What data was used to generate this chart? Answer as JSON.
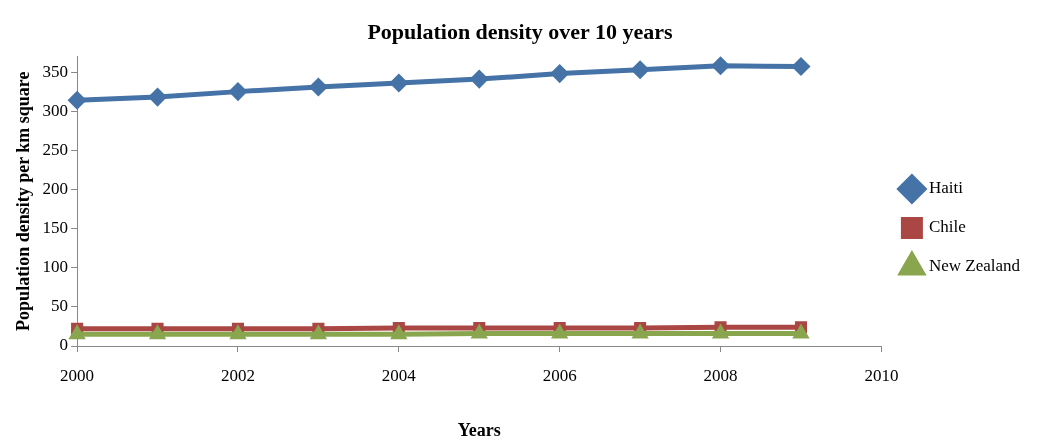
{
  "chart_data": {
    "type": "line",
    "title": "Population density over 10 years",
    "xlabel": "Years",
    "ylabel": "Population density per km square",
    "x": [
      2000,
      2001,
      2002,
      2003,
      2004,
      2005,
      2006,
      2007,
      2008,
      2009
    ],
    "xlim": [
      2000,
      2010
    ],
    "xticks": [
      2000,
      2002,
      2004,
      2006,
      2008,
      2010
    ],
    "ylim": [
      0,
      370
    ],
    "yticks": [
      0,
      50,
      100,
      150,
      200,
      250,
      300,
      350
    ],
    "grid": false,
    "legend": "right",
    "series": [
      {
        "name": "Haiti",
        "color": "#4572a7",
        "marker": "diamond",
        "values": [
          314,
          318,
          325,
          331,
          336,
          341,
          348,
          353,
          358,
          357
        ]
      },
      {
        "name": "Chile",
        "color": "#aa4643",
        "marker": "square",
        "values": [
          22,
          22,
          22,
          22,
          23,
          23,
          23,
          23,
          24,
          24
        ]
      },
      {
        "name": "New Zealand",
        "color": "#89a54e",
        "marker": "triangle",
        "values": [
          15,
          15,
          15,
          15,
          15,
          16,
          16,
          16,
          16,
          16
        ]
      }
    ]
  }
}
